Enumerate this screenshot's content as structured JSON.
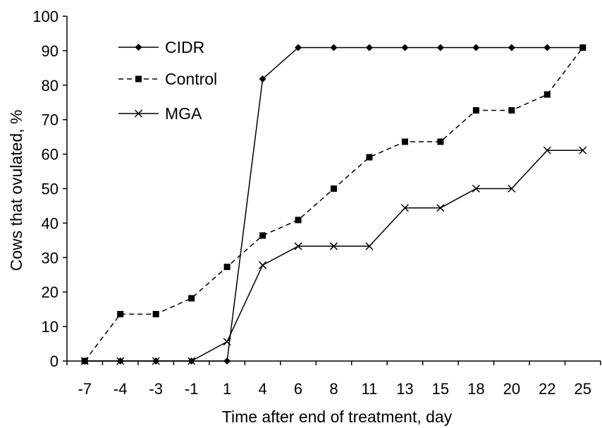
{
  "chart_data": {
    "type": "line",
    "title": "",
    "xlabel": "Time after end of treatment, day",
    "ylabel": "Cows that ovulated, %",
    "categories": [
      "-7",
      "-4",
      "-3",
      "-1",
      "1",
      "4",
      "6",
      "8",
      "11",
      "13",
      "15",
      "18",
      "20",
      "22",
      "25"
    ],
    "ylim": [
      0,
      100
    ],
    "yticks": [
      0,
      10,
      20,
      30,
      40,
      50,
      60,
      70,
      80,
      90,
      100
    ],
    "grid": false,
    "legend_position": "top-left",
    "series": [
      {
        "name": "CIDR",
        "line": "solid",
        "marker": "diamond",
        "color": "#000000",
        "values": [
          0,
          0,
          0,
          0,
          0,
          81.8,
          90.9,
          90.9,
          90.9,
          90.9,
          90.9,
          90.9,
          90.9,
          90.9,
          90.9
        ]
      },
      {
        "name": "Control",
        "line": "dashed",
        "marker": "square",
        "color": "#000000",
        "values": [
          0,
          13.6,
          13.6,
          18.2,
          27.3,
          36.4,
          40.9,
          50.0,
          59.1,
          63.6,
          63.6,
          72.7,
          72.7,
          77.3,
          90.9
        ]
      },
      {
        "name": "MGA",
        "line": "solid",
        "marker": "x",
        "color": "#000000",
        "values": [
          0,
          0,
          0,
          0,
          5.6,
          27.8,
          33.3,
          33.3,
          33.3,
          44.4,
          44.4,
          50.0,
          50.0,
          61.1,
          61.1
        ]
      }
    ]
  }
}
